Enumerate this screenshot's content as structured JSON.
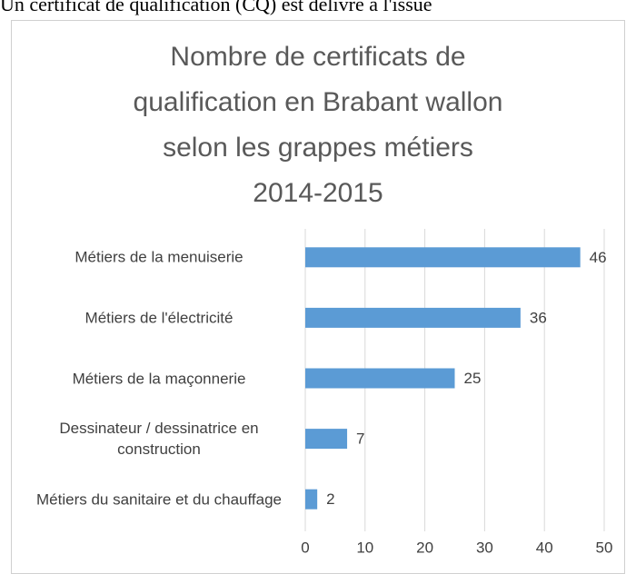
{
  "document_text": "Un certificat de qualification (CQ) est délivré à l'issue",
  "chart_data": {
    "type": "bar",
    "orientation": "horizontal",
    "title": [
      "Nombre de certificats de",
      "qualification en Brabant wallon",
      "selon les grappes métiers",
      "2014-2015"
    ],
    "categories": [
      "Métiers de la menuiserie",
      "Métiers de l'électricité",
      "Métiers de la maçonnerie",
      "Dessinateur / dessinatrice en construction",
      "Métiers du sanitaire et du chauffage"
    ],
    "values": [
      46,
      36,
      25,
      7,
      2
    ],
    "color": "#5b9bd5",
    "xlim": [
      0,
      50
    ],
    "xticks": [
      0,
      10,
      20,
      30,
      40,
      50
    ],
    "grid": true
  }
}
